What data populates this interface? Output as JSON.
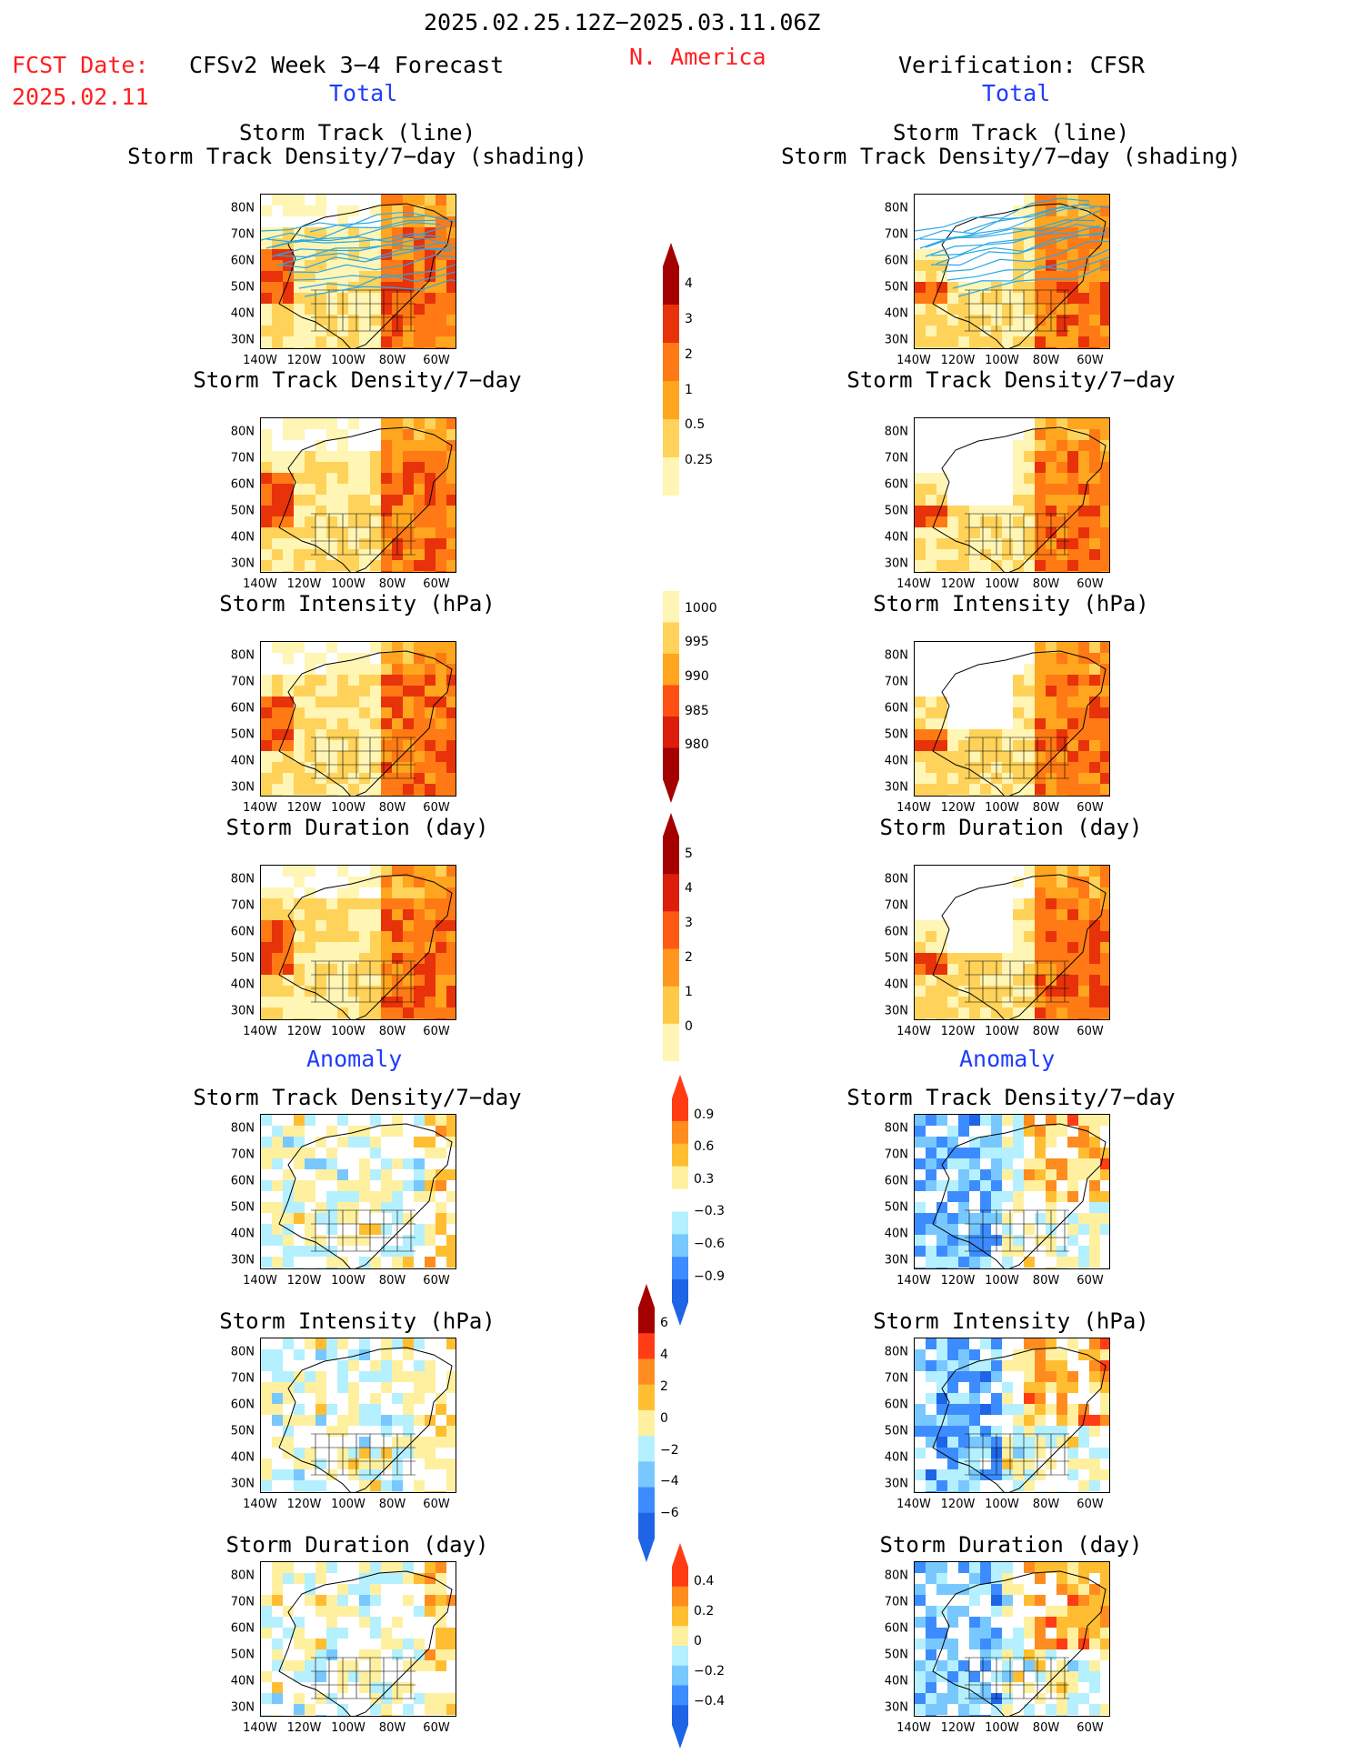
{
  "header": {
    "period": "2025.02.25.12Z−2025.03.11.06Z",
    "region": "N. America",
    "fcst_date_label": "FCST Date:",
    "fcst_date_value": "2025.02.11",
    "model_title": "CFSv2 Week 3−4 Forecast",
    "verification_title": "Verification: CFSR",
    "left_section_total": "Total",
    "right_section_total": "Total",
    "left_section_anomaly": "Anomaly",
    "right_section_anomaly": "Anomaly"
  },
  "panel_titles": {
    "track_line": "Storm Track (line)",
    "track_density_shading": "Storm Track Density/7−day (shading)",
    "track_density": "Storm Track Density/7−day",
    "intensity": "Storm Intensity (hPa)",
    "duration": "Storm Duration (day)"
  },
  "map_axes": {
    "lat_ticks": [
      "80N",
      "70N",
      "60N",
      "50N",
      "40N",
      "30N"
    ],
    "lon_ticks": [
      "140W",
      "120W",
      "100W",
      "80W",
      "60W"
    ]
  },
  "colorbars": {
    "track_density_total": {
      "labels": [
        "4",
        "3",
        "2",
        "1",
        "0.5",
        "0.25"
      ],
      "colors": [
        "#a50000",
        "#e8320a",
        "#ff7a14",
        "#ffa51e",
        "#ffd25a",
        "#fff5b4"
      ]
    },
    "intensity_total": {
      "labels": [
        "1000",
        "995",
        "990",
        "985",
        "980"
      ],
      "colors": [
        "#fff5b4",
        "#ffd25a",
        "#ffa51e",
        "#ff5014",
        "#dc1e0a",
        "#a50000"
      ]
    },
    "duration_total": {
      "labels": [
        "5",
        "4",
        "3",
        "2",
        "1",
        "0"
      ],
      "colors": [
        "#a50000",
        "#dc1e0a",
        "#ff5a14",
        "#ff961e",
        "#ffc846",
        "#fff5b4"
      ]
    },
    "track_density_anomaly": {
      "labels": [
        "0.9",
        "0.6",
        "0.3",
        "−0.3",
        "−0.6",
        "−0.9"
      ],
      "colors": [
        "#ff3c14",
        "#ff8c1e",
        "#ffbe32",
        "#fff0a0",
        "#ffffff",
        "#b4f0ff",
        "#78c8ff",
        "#3c8cff",
        "#1e64e6"
      ]
    },
    "intensity_anomaly": {
      "labels": [
        "6",
        "4",
        "2",
        "0",
        "−2",
        "−4",
        "−6"
      ],
      "colors": [
        "#a50000",
        "#ff3c14",
        "#ff8c1e",
        "#ffbe32",
        "#fff0a0",
        "#b4f0ff",
        "#78c8ff",
        "#3c8cff",
        "#1e64e6"
      ]
    },
    "duration_anomaly": {
      "labels": [
        "0.4",
        "0.2",
        "0",
        "−0.2",
        "−0.4"
      ],
      "colors": [
        "#ff3c14",
        "#ff8c1e",
        "#ffbe32",
        "#fff0a0",
        "#b4f0ff",
        "#78c8ff",
        "#3c8cff",
        "#1e64e6"
      ]
    }
  },
  "chart_data": [
    {
      "type": "heatmap",
      "column": "CFSv2 Week 3−4 Forecast",
      "section": "Total",
      "title": "Storm Track (line) / Storm Track Density/7−day (shading)",
      "field": "track_density",
      "overlay": "storm track lines",
      "colorbar": "track_density_total"
    },
    {
      "type": "heatmap",
      "column": "CFSv2 Week 3−4 Forecast",
      "section": "Total",
      "title": "Storm Track Density/7−day",
      "field": "track_density",
      "colorbar": "track_density_total"
    },
    {
      "type": "heatmap",
      "column": "CFSv2 Week 3−4 Forecast",
      "section": "Total",
      "title": "Storm Intensity (hPa)",
      "field": "intensity",
      "colorbar": "intensity_total"
    },
    {
      "type": "heatmap",
      "column": "CFSv2 Week 3−4 Forecast",
      "section": "Total",
      "title": "Storm Duration (day)",
      "field": "duration",
      "colorbar": "duration_total"
    },
    {
      "type": "heatmap",
      "column": "CFSv2 Week 3−4 Forecast",
      "section": "Anomaly",
      "title": "Storm Track Density/7−day",
      "field": "track_density",
      "colorbar": "track_density_anomaly"
    },
    {
      "type": "heatmap",
      "column": "CFSv2 Week 3−4 Forecast",
      "section": "Anomaly",
      "title": "Storm Intensity (hPa)",
      "field": "intensity",
      "colorbar": "intensity_anomaly"
    },
    {
      "type": "heatmap",
      "column": "CFSv2 Week 3−4 Forecast",
      "section": "Anomaly",
      "title": "Storm Duration (day)",
      "field": "duration",
      "colorbar": "duration_anomaly"
    },
    {
      "type": "heatmap",
      "column": "Verification: CFSR",
      "section": "Total",
      "title": "Storm Track (line) / Storm Track Density/7−day (shading)",
      "field": "track_density",
      "overlay": "storm track lines",
      "colorbar": "track_density_total"
    },
    {
      "type": "heatmap",
      "column": "Verification: CFSR",
      "section": "Total",
      "title": "Storm Track Density/7−day",
      "field": "track_density",
      "colorbar": "track_density_total"
    },
    {
      "type": "heatmap",
      "column": "Verification: CFSR",
      "section": "Total",
      "title": "Storm Intensity (hPa)",
      "field": "intensity",
      "colorbar": "intensity_total"
    },
    {
      "type": "heatmap",
      "column": "Verification: CFSR",
      "section": "Total",
      "title": "Storm Duration (day)",
      "field": "duration",
      "colorbar": "duration_total"
    },
    {
      "type": "heatmap",
      "column": "Verification: CFSR",
      "section": "Anomaly",
      "title": "Storm Track Density/7−day",
      "field": "track_density",
      "colorbar": "track_density_anomaly"
    },
    {
      "type": "heatmap",
      "column": "Verification: CFSR",
      "section": "Anomaly",
      "title": "Storm Intensity (hPa)",
      "field": "intensity",
      "colorbar": "intensity_anomaly"
    },
    {
      "type": "heatmap",
      "column": "Verification: CFSR",
      "section": "Anomaly",
      "title": "Storm Duration (day)",
      "field": "duration",
      "colorbar": "duration_anomaly"
    }
  ]
}
